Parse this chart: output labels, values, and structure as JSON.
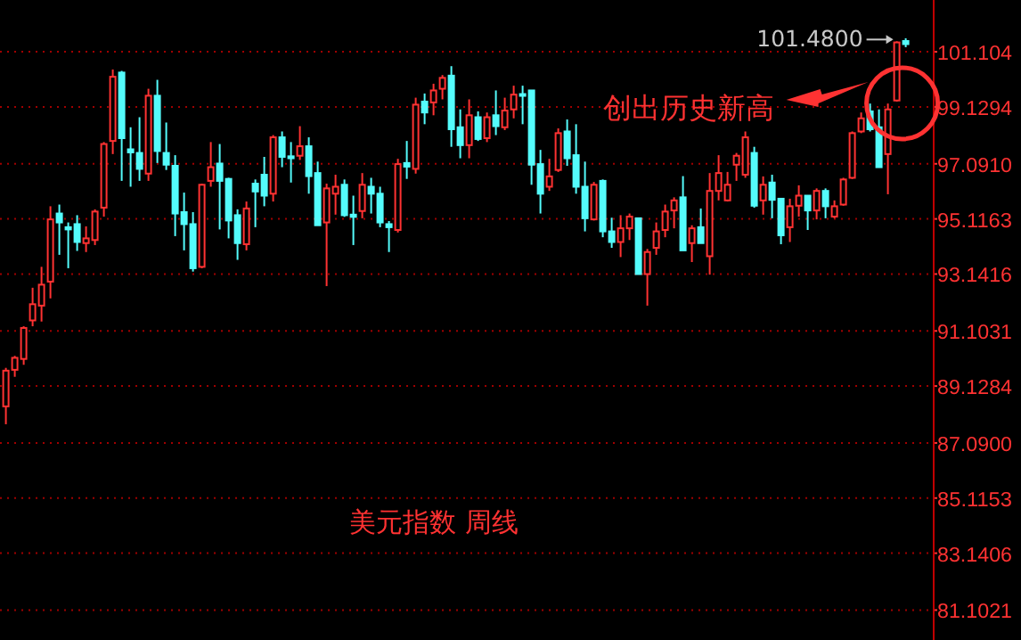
{
  "chart_data": {
    "type": "candlestick",
    "categories": [
      null,
      null,
      null,
      null,
      null,
      null,
      null,
      null,
      null,
      null,
      null,
      null,
      null,
      null,
      null,
      null,
      null,
      null,
      null,
      null,
      null,
      null,
      null,
      null,
      null,
      null,
      null,
      null,
      null,
      null,
      null,
      null,
      null,
      null,
      null,
      null,
      null,
      null,
      null,
      null,
      null,
      null,
      null,
      null,
      null,
      null,
      null,
      null,
      null,
      null,
      null,
      null,
      null,
      null,
      null,
      null,
      null,
      null,
      null,
      null,
      null,
      null,
      null,
      null,
      null,
      null,
      null,
      null,
      null,
      null,
      null,
      null,
      null,
      null,
      null,
      null,
      null,
      null,
      null,
      null,
      null,
      null,
      null,
      null,
      null,
      null,
      null,
      null,
      null,
      null,
      null,
      null,
      null,
      null,
      null,
      null,
      null,
      null,
      null,
      null,
      null,
      null
    ],
    "ohlc": [
      [
        88.4,
        89.78,
        87.76,
        89.68
      ],
      [
        89.71,
        90.21,
        89.46,
        90.14
      ],
      [
        90.1,
        91.27,
        89.89,
        91.21
      ],
      [
        91.48,
        92.65,
        91.27,
        92.06
      ],
      [
        92.01,
        93.4,
        91.44,
        92.76
      ],
      [
        92.87,
        95.57,
        92.27,
        95.1
      ],
      [
        95.31,
        95.63,
        93.83,
        94.99
      ],
      [
        94.82,
        94.99,
        93.35,
        94.74
      ],
      [
        94.93,
        95.25,
        93.97,
        94.29
      ],
      [
        94.25,
        94.85,
        93.93,
        94.42
      ],
      [
        94.36,
        95.46,
        94.18,
        95.38
      ],
      [
        95.52,
        97.87,
        95.2,
        97.8
      ],
      [
        97.91,
        100.47,
        97.44,
        100.21
      ],
      [
        100.36,
        100.42,
        96.48,
        98.01
      ],
      [
        97.61,
        98.4,
        96.27,
        97.5
      ],
      [
        97.48,
        98.76,
        96.48,
        96.91
      ],
      [
        96.74,
        99.78,
        96.48,
        99.53
      ],
      [
        99.53,
        100.1,
        97.12,
        97.55
      ],
      [
        97.48,
        98.57,
        96.87,
        97.06
      ],
      [
        97.02,
        97.4,
        94.5,
        95.31
      ],
      [
        95.36,
        96.06,
        93.99,
        94.93
      ],
      [
        94.93,
        95.36,
        93.23,
        93.35
      ],
      [
        93.4,
        96.38,
        93.35,
        96.34
      ],
      [
        96.48,
        97.87,
        96.27,
        96.97
      ],
      [
        97.1,
        97.8,
        94.74,
        96.48
      ],
      [
        96.55,
        96.59,
        94.42,
        95.06
      ],
      [
        95.25,
        95.46,
        93.65,
        94.25
      ],
      [
        94.21,
        95.74,
        93.99,
        95.49
      ],
      [
        96.38,
        96.53,
        94.82,
        96.1
      ],
      [
        96.7,
        97.34,
        95.57,
        95.95
      ],
      [
        96.02,
        98.12,
        95.74,
        98.04
      ],
      [
        98.04,
        98.25,
        96.97,
        97.34
      ],
      [
        97.36,
        97.87,
        96.42,
        97.29
      ],
      [
        97.38,
        98.44,
        97.23,
        97.72
      ],
      [
        97.72,
        98.04,
        96.02,
        96.65
      ],
      [
        96.76,
        97.17,
        94.89,
        94.89
      ],
      [
        94.99,
        96.38,
        92.71,
        96.21
      ],
      [
        96.02,
        96.7,
        95.27,
        96.27
      ],
      [
        96.34,
        96.53,
        95.19,
        95.25
      ],
      [
        95.27,
        95.95,
        94.18,
        95.19
      ],
      [
        95.4,
        96.76,
        95.14,
        96.34
      ],
      [
        96.27,
        96.59,
        95.31,
        96.02
      ],
      [
        96.02,
        96.27,
        94.82,
        94.99
      ],
      [
        94.93,
        95.04,
        93.93,
        94.82
      ],
      [
        94.72,
        97.27,
        94.63,
        97.08
      ],
      [
        97.12,
        97.91,
        96.55,
        96.99
      ],
      [
        96.91,
        99.46,
        96.74,
        99.21
      ],
      [
        99.32,
        99.61,
        98.51,
        98.93
      ],
      [
        99.29,
        99.96,
        98.83,
        99.72
      ],
      [
        99.78,
        100.27,
        99.4,
        100.17
      ],
      [
        100.25,
        100.59,
        97.7,
        98.33
      ],
      [
        98.4,
        99.04,
        97.29,
        97.76
      ],
      [
        97.76,
        99.4,
        97.29,
        98.83
      ],
      [
        98.76,
        98.97,
        97.91,
        97.98
      ],
      [
        98.01,
        98.93,
        97.87,
        98.76
      ],
      [
        98.83,
        99.72,
        98.12,
        98.44
      ],
      [
        98.4,
        99.46,
        98.3,
        99.0
      ],
      [
        99.04,
        99.89,
        98.72,
        99.57
      ],
      [
        99.59,
        99.89,
        98.51,
        99.53
      ],
      [
        99.72,
        99.72,
        96.34,
        97.06
      ],
      [
        97.08,
        97.59,
        95.31,
        96.02
      ],
      [
        96.27,
        97.27,
        96.12,
        96.64
      ],
      [
        96.87,
        98.36,
        96.8,
        98.19
      ],
      [
        98.25,
        98.68,
        97.02,
        97.29
      ],
      [
        97.4,
        98.51,
        96.02,
        96.27
      ],
      [
        96.27,
        97.17,
        94.67,
        95.14
      ],
      [
        95.1,
        96.44,
        95.06,
        96.34
      ],
      [
        96.48,
        96.53,
        94.46,
        94.67
      ],
      [
        94.67,
        95.16,
        94.08,
        94.29
      ],
      [
        94.29,
        95.25,
        93.75,
        94.78
      ],
      [
        94.78,
        95.31,
        94.36,
        95.2
      ],
      [
        95.14,
        95.14,
        93.14,
        93.14
      ],
      [
        93.14,
        94.04,
        92.01,
        93.93
      ],
      [
        94.08,
        94.99,
        93.83,
        94.67
      ],
      [
        94.72,
        95.63,
        94.46,
        95.38
      ],
      [
        95.42,
        95.89,
        94.78,
        95.78
      ],
      [
        95.89,
        96.65,
        93.99,
        93.99
      ],
      [
        94.25,
        94.89,
        93.57,
        94.78
      ],
      [
        94.82,
        95.49,
        94.25,
        94.25
      ],
      [
        93.78,
        96.76,
        93.12,
        96.12
      ],
      [
        96.12,
        97.4,
        95.78,
        96.76
      ],
      [
        95.78,
        96.8,
        95.74,
        96.34
      ],
      [
        97.06,
        97.48,
        96.48,
        97.38
      ],
      [
        96.7,
        98.25,
        96.59,
        98.04
      ],
      [
        97.48,
        97.7,
        95.52,
        95.59
      ],
      [
        95.78,
        96.64,
        95.27,
        96.34
      ],
      [
        96.42,
        96.7,
        95.14,
        95.8
      ],
      [
        95.84,
        95.84,
        94.21,
        94.53
      ],
      [
        94.82,
        95.84,
        94.29,
        95.57
      ],
      [
        95.59,
        96.32,
        95.2,
        95.95
      ],
      [
        95.95,
        95.95,
        94.72,
        95.42
      ],
      [
        95.42,
        96.21,
        95.1,
        96.12
      ],
      [
        96.12,
        96.21,
        95.14,
        95.57
      ],
      [
        95.2,
        95.78,
        95.14,
        95.57
      ],
      [
        95.63,
        96.59,
        95.59,
        96.53
      ],
      [
        96.59,
        98.25,
        96.55,
        98.19
      ],
      [
        98.25,
        98.93,
        98.19,
        98.72
      ],
      [
        98.97,
        99.25,
        98.25,
        98.33
      ],
      [
        98.4,
        99.04,
        96.97,
        96.97
      ],
      [
        97.44,
        99.25,
        96.0,
        99.04
      ],
      [
        99.36,
        101.48,
        99.32,
        101.44
      ],
      [
        101.49,
        101.59,
        101.27,
        101.38
      ]
    ],
    "ylim": [
      80.03,
      102.96
    ],
    "yticks": [
      101.104,
      99.1294,
      {
        "value": 97.091,
        "label": "97.0910"
      },
      95.1163,
      93.1416,
      91.1031,
      89.1284,
      {
        "value": 87.09,
        "label": "87.0900"
      },
      85.1153,
      83.1406,
      81.1021
    ],
    "grid": "y",
    "annotations": [
      "101.4800",
      "创出历史新高",
      "美元指数 周线"
    ]
  }
}
